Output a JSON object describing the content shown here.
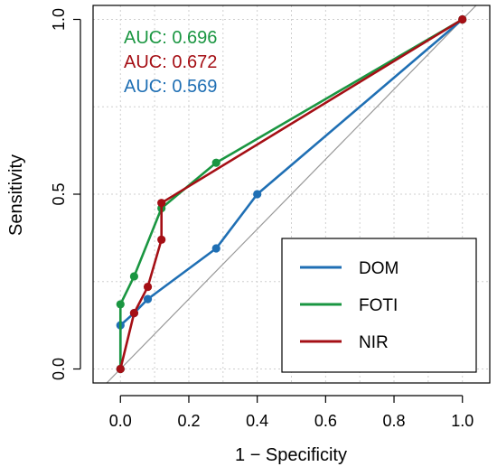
{
  "chart_data": {
    "type": "line",
    "title": "",
    "xlabel": "1 − Specificity",
    "ylabel": "Sensitivity",
    "xlim": [
      -0.08,
      1.08
    ],
    "ylim": [
      -0.04,
      1.04
    ],
    "x_ticks": [
      0.0,
      0.2,
      0.4,
      0.6,
      0.8,
      1.0
    ],
    "x_tick_labels": [
      "0.0",
      "0.2",
      "0.4",
      "0.6",
      "0.8",
      "1.0"
    ],
    "y_ticks": [
      0.0,
      0.5,
      1.0
    ],
    "y_tick_labels": [
      "0.0",
      "0.5",
      "1.0"
    ],
    "grid": true,
    "diagonal_reference": true,
    "legend_position": "bottom-right",
    "annotations": [
      {
        "text": "AUC: 0.696",
        "color": "#1a9641"
      },
      {
        "text": "AUC: 0.672",
        "color": "#a50f15"
      },
      {
        "text": "AUC: 0.569",
        "color": "#1f6fb4"
      }
    ],
    "series": [
      {
        "name": "DOM",
        "color": "#1f6fb4",
        "x": [
          0.0,
          0.0,
          0.04,
          0.08,
          0.28,
          0.4,
          1.0
        ],
        "y": [
          0.0,
          0.125,
          0.16,
          0.2,
          0.345,
          0.5,
          1.0
        ]
      },
      {
        "name": "FOTI",
        "color": "#1a9641",
        "x": [
          0.0,
          0.0,
          0.04,
          0.12,
          0.28,
          1.0
        ],
        "y": [
          0.0,
          0.185,
          0.265,
          0.46,
          0.59,
          1.0
        ]
      },
      {
        "name": "NIR",
        "color": "#a50f15",
        "x": [
          0.0,
          0.04,
          0.08,
          0.12,
          0.12,
          1.0
        ],
        "y": [
          0.0,
          0.16,
          0.235,
          0.37,
          0.475,
          1.0
        ]
      }
    ]
  }
}
